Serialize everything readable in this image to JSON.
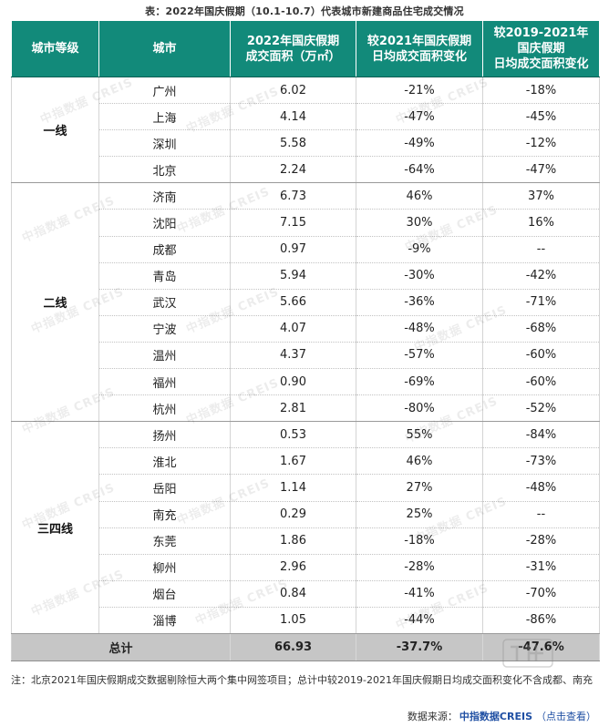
{
  "caption": "表：2022年国庆假期（10.1-10.7）代表城市新建商品住宅成交情况",
  "headers": {
    "tier": "城市等级",
    "city": "城市",
    "area": [
      "2022年国庆假期",
      "成交面积（万㎡）"
    ],
    "vs2021": [
      "较2021年国庆假期",
      "日均成交面积变化"
    ],
    "vs2019": [
      "较2019-2021年",
      "国庆假期",
      "日均成交面积变化"
    ]
  },
  "groups": [
    {
      "tier": "一线",
      "rows": [
        {
          "city": "广州",
          "area": "6.02",
          "vs2021": "-21%",
          "vs2019": "-18%"
        },
        {
          "city": "上海",
          "area": "4.14",
          "vs2021": "-47%",
          "vs2019": "-45%"
        },
        {
          "city": "深圳",
          "area": "5.58",
          "vs2021": "-49%",
          "vs2019": "-12%"
        },
        {
          "city": "北京",
          "area": "2.24",
          "vs2021": "-64%",
          "vs2019": "-47%"
        }
      ]
    },
    {
      "tier": "二线",
      "rows": [
        {
          "city": "济南",
          "area": "6.73",
          "vs2021": "46%",
          "vs2019": "37%"
        },
        {
          "city": "沈阳",
          "area": "7.15",
          "vs2021": "30%",
          "vs2019": "16%"
        },
        {
          "city": "成都",
          "area": "0.97",
          "vs2021": "-9%",
          "vs2019": "--"
        },
        {
          "city": "青岛",
          "area": "5.94",
          "vs2021": "-30%",
          "vs2019": "-42%"
        },
        {
          "city": "武汉",
          "area": "5.66",
          "vs2021": "-36%",
          "vs2019": "-71%"
        },
        {
          "city": "宁波",
          "area": "4.07",
          "vs2021": "-48%",
          "vs2019": "-68%"
        },
        {
          "city": "温州",
          "area": "4.37",
          "vs2021": "-57%",
          "vs2019": "-60%"
        },
        {
          "city": "福州",
          "area": "0.90",
          "vs2021": "-69%",
          "vs2019": "-60%"
        },
        {
          "city": "杭州",
          "area": "2.81",
          "vs2021": "-80%",
          "vs2019": "-52%"
        }
      ]
    },
    {
      "tier": "三四线",
      "rows": [
        {
          "city": "扬州",
          "area": "0.53",
          "vs2021": "55%",
          "vs2019": "-84%"
        },
        {
          "city": "淮北",
          "area": "1.67",
          "vs2021": "46%",
          "vs2019": "-73%"
        },
        {
          "city": "岳阳",
          "area": "1.14",
          "vs2021": "27%",
          "vs2019": "-48%"
        },
        {
          "city": "南充",
          "area": "0.29",
          "vs2021": "25%",
          "vs2019": "--"
        },
        {
          "city": "东莞",
          "area": "1.86",
          "vs2021": "-18%",
          "vs2019": "-28%"
        },
        {
          "city": "柳州",
          "area": "2.96",
          "vs2021": "-28%",
          "vs2019": "-31%"
        },
        {
          "city": "烟台",
          "area": "0.84",
          "vs2021": "-41%",
          "vs2019": "-70%"
        },
        {
          "city": "淄博",
          "area": "1.05",
          "vs2021": "-44%",
          "vs2019": "-86%"
        }
      ]
    }
  ],
  "total": {
    "label": "总计",
    "area": "66.93",
    "vs2021": "-37.7%",
    "vs2019": "-47.6%"
  },
  "watermark": "中指数据 CREIS",
  "note": "注：北京2021年国庆假期成交数据剔除恒大两个集中网签项目；总计中较2019-2021年国庆假期日均成交面积变化不含成都、南充",
  "source": {
    "prefix": "数据来源：",
    "brand": "中指数据CREIS",
    "link": "（点击查看）"
  }
}
